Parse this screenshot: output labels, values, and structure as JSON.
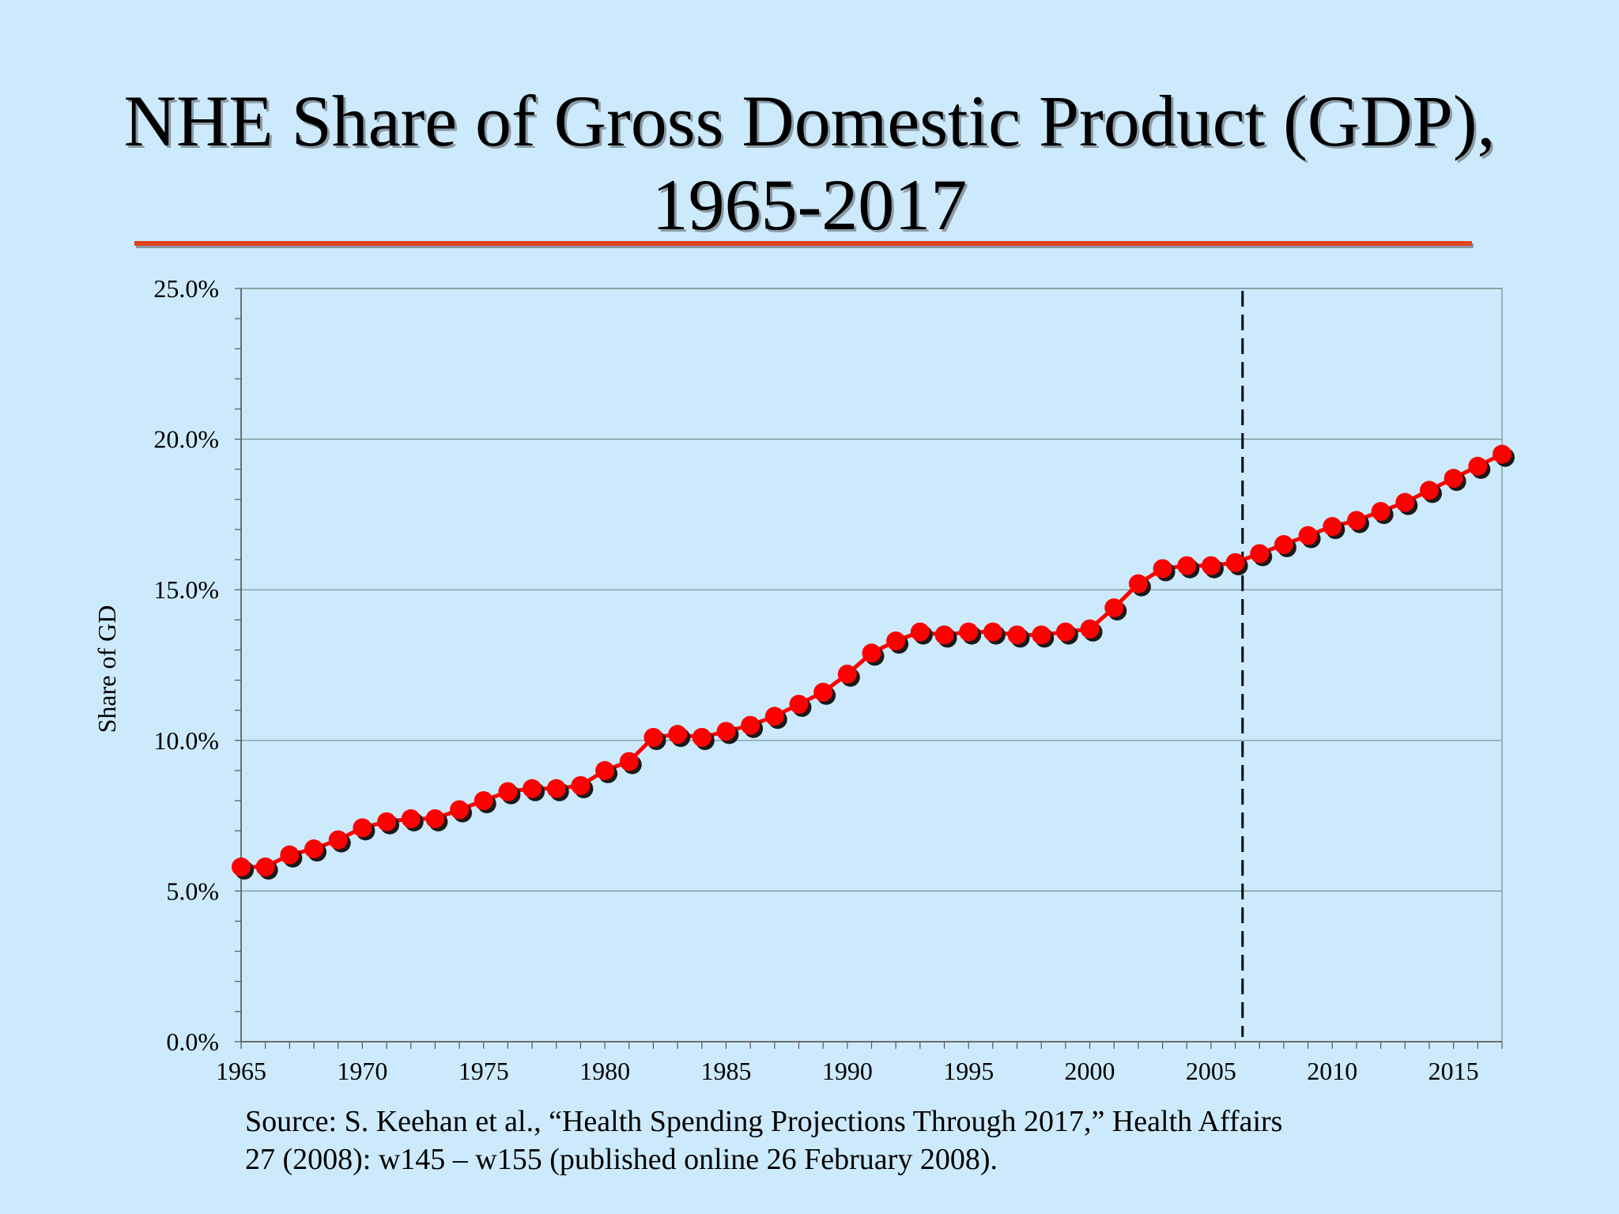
{
  "slide": {
    "title_line1": "NHE Share of Gross Domestic Product (GDP),",
    "title_line2": "1965-2017",
    "source_line1": "Source: S. Keehan et al., “Health Spending Projections Through 2017,” Health Affairs",
    "source_line2": "27 (2008): w145 – w155 (published online 26 February 2008)."
  },
  "colors": {
    "background": "#cdeafc",
    "title_rule": "#e0431e",
    "series": "#ff0000",
    "marker_shadow": "#1a1a1a",
    "gridline": "#6f8f8f",
    "divider": "#000000"
  },
  "chart_data": {
    "type": "line",
    "title": "NHE Share of Gross Domestic Product (GDP), 1965-2017",
    "xlabel": "",
    "ylabel": "Share of GD",
    "xlim": [
      1965,
      2017
    ],
    "ylim": [
      0,
      25
    ],
    "grid": true,
    "y_ticks": [
      "0.0%",
      "5.0%",
      "10.0%",
      "15.0%",
      "20.0%",
      "25.0%"
    ],
    "y_tick_values": [
      0,
      5,
      10,
      15,
      20,
      25
    ],
    "x_ticks": [
      "1965",
      "1970",
      "1975",
      "1980",
      "1985",
      "1990",
      "1995",
      "2000",
      "2005",
      "2010",
      "2015"
    ],
    "x_tick_values": [
      1965,
      1970,
      1975,
      1980,
      1985,
      1990,
      1995,
      2000,
      2005,
      2010,
      2015
    ],
    "projection_divider_x": 2006.3,
    "series": [
      {
        "name": "NHE share of GDP",
        "x": [
          1965,
          1966,
          1967,
          1968,
          1969,
          1970,
          1971,
          1972,
          1973,
          1974,
          1975,
          1976,
          1977,
          1978,
          1979,
          1980,
          1981,
          1982,
          1983,
          1984,
          1985,
          1986,
          1987,
          1988,
          1989,
          1990,
          1991,
          1992,
          1993,
          1994,
          1995,
          1996,
          1997,
          1998,
          1999,
          2000,
          2001,
          2002,
          2003,
          2004,
          2005,
          2006,
          2007,
          2008,
          2009,
          2010,
          2011,
          2012,
          2013,
          2014,
          2015,
          2016,
          2017
        ],
        "values": [
          5.8,
          5.8,
          6.2,
          6.4,
          6.7,
          7.1,
          7.3,
          7.4,
          7.4,
          7.7,
          8.0,
          8.3,
          8.4,
          8.4,
          8.5,
          9.0,
          9.3,
          10.1,
          10.2,
          10.1,
          10.3,
          10.5,
          10.8,
          11.2,
          11.6,
          12.2,
          12.9,
          13.3,
          13.6,
          13.5,
          13.6,
          13.6,
          13.5,
          13.5,
          13.6,
          13.7,
          14.4,
          15.2,
          15.7,
          15.8,
          15.8,
          15.9,
          16.2,
          16.5,
          16.8,
          17.1,
          17.3,
          17.6,
          17.9,
          18.3,
          18.7,
          19.1,
          19.5
        ]
      }
    ]
  }
}
